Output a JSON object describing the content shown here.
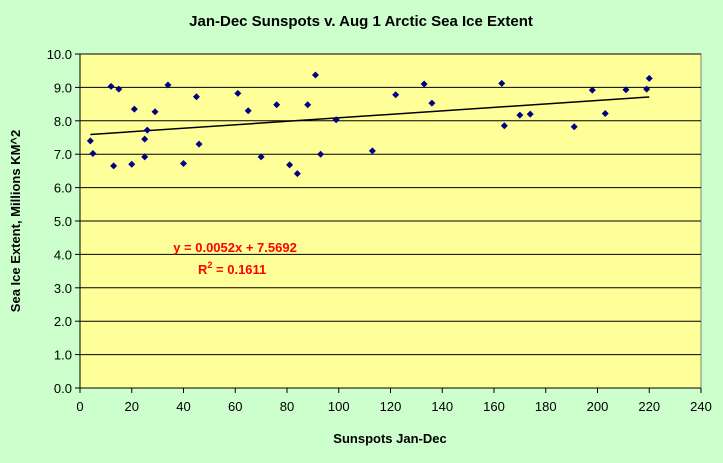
{
  "colors": {
    "background": "#ccffcc",
    "plot_area": "#ffff99",
    "marker": "#000080",
    "trendline": "#000000",
    "equation_text": "#ff0000"
  },
  "chart_data": {
    "type": "scatter",
    "title": "Jan-Dec Sunspots v. Aug 1 Arctic Sea Ice Extent",
    "xlabel": "Sunspots Jan-Dec",
    "ylabel": "Sea Ice Extent, Millions KM^2",
    "xlim": [
      0,
      240
    ],
    "ylim": [
      0,
      10
    ],
    "x_ticks": [
      "0",
      "20",
      "40",
      "60",
      "80",
      "100",
      "120",
      "140",
      "160",
      "180",
      "200",
      "220",
      "240"
    ],
    "y_ticks": [
      "0.0",
      "1.0",
      "2.0",
      "3.0",
      "4.0",
      "5.0",
      "6.0",
      "7.0",
      "8.0",
      "9.0",
      "10.0"
    ],
    "grid": "horizontal",
    "marker": "diamond",
    "points": [
      {
        "x": 4,
        "y": 7.4
      },
      {
        "x": 5,
        "y": 7.02
      },
      {
        "x": 12,
        "y": 9.03
      },
      {
        "x": 13,
        "y": 6.65
      },
      {
        "x": 15,
        "y": 8.95
      },
      {
        "x": 20,
        "y": 6.7
      },
      {
        "x": 21,
        "y": 8.35
      },
      {
        "x": 25,
        "y": 7.45
      },
      {
        "x": 25,
        "y": 6.92
      },
      {
        "x": 26,
        "y": 7.72
      },
      {
        "x": 29,
        "y": 8.27
      },
      {
        "x": 34,
        "y": 9.07
      },
      {
        "x": 40,
        "y": 6.72
      },
      {
        "x": 45,
        "y": 8.72
      },
      {
        "x": 46,
        "y": 7.3
      },
      {
        "x": 61,
        "y": 8.82
      },
      {
        "x": 65,
        "y": 8.3
      },
      {
        "x": 70,
        "y": 6.92
      },
      {
        "x": 76,
        "y": 8.48
      },
      {
        "x": 81,
        "y": 6.68
      },
      {
        "x": 84,
        "y": 6.42
      },
      {
        "x": 88,
        "y": 8.48
      },
      {
        "x": 91,
        "y": 9.37
      },
      {
        "x": 93,
        "y": 7.0
      },
      {
        "x": 99,
        "y": 8.03
      },
      {
        "x": 113,
        "y": 7.1
      },
      {
        "x": 122,
        "y": 8.78
      },
      {
        "x": 133,
        "y": 9.1
      },
      {
        "x": 136,
        "y": 8.53
      },
      {
        "x": 163,
        "y": 9.12
      },
      {
        "x": 164,
        "y": 7.85
      },
      {
        "x": 170,
        "y": 8.17
      },
      {
        "x": 174,
        "y": 8.2
      },
      {
        "x": 191,
        "y": 7.82
      },
      {
        "x": 198,
        "y": 8.92
      },
      {
        "x": 203,
        "y": 8.22
      },
      {
        "x": 211,
        "y": 8.93
      },
      {
        "x": 219,
        "y": 8.95
      },
      {
        "x": 220,
        "y": 9.27
      }
    ],
    "trendline": {
      "type": "linear",
      "slope": 0.0052,
      "intercept": 7.5692,
      "x_range": [
        4,
        220
      ],
      "equation": "y = 0.0052x + 7.5692",
      "r2_prefix": "R",
      "r2_sup": "2",
      "r2_suffix": " = 0.1611"
    }
  }
}
